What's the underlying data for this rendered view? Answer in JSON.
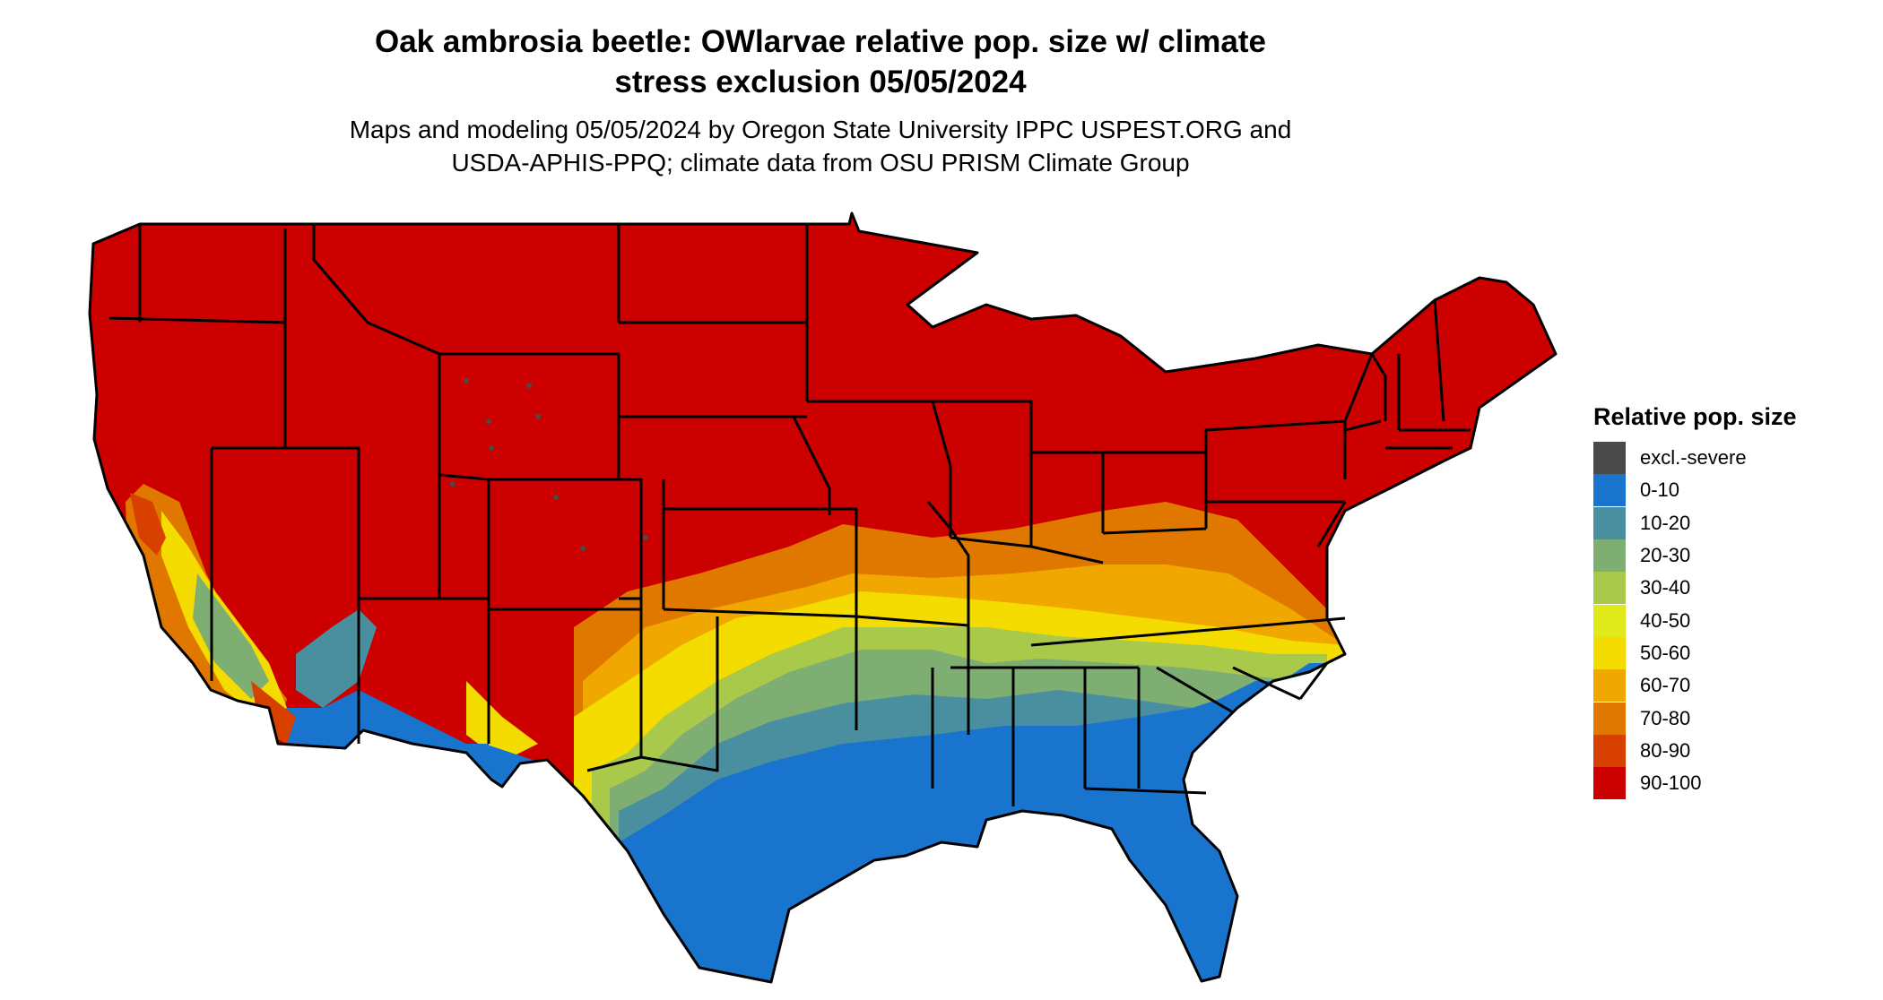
{
  "title": {
    "line1": "Oak ambrosia beetle: OWlarvae relative pop. size w/ climate",
    "line2": "stress exclusion 05/05/2024"
  },
  "subtitle": {
    "line1": "Maps and modeling 05/05/2024 by Oregon State University IPPC USPEST.ORG and",
    "line2": "USDA-APHIS-PPQ; climate data from OSU PRISM Climate Group"
  },
  "legend": {
    "title": "Relative pop. size",
    "items": [
      {
        "label": "excl.-severe",
        "color": "#4a4a4a"
      },
      {
        "label": "0-10",
        "color": "#1874cd"
      },
      {
        "label": "10-20",
        "color": "#4a8fa0"
      },
      {
        "label": "20-30",
        "color": "#7fae72"
      },
      {
        "label": "30-40",
        "color": "#a9c94a"
      },
      {
        "label": "40-50",
        "color": "#e0ea1a"
      },
      {
        "label": "50-60",
        "color": "#f5dc00"
      },
      {
        "label": "60-70",
        "color": "#f0a800"
      },
      {
        "label": "70-80",
        "color": "#e07800"
      },
      {
        "label": "80-90",
        "color": "#d84000"
      },
      {
        "label": "90-100",
        "color": "#cd0000"
      }
    ]
  },
  "map": {
    "region": "conterminous-us",
    "boundaries": "state-lines",
    "dominant_class": "90-100",
    "southern_classes": [
      "0-10",
      "10-20",
      "20-30",
      "30-40",
      "40-50",
      "50-60",
      "60-70",
      "70-80",
      "80-90"
    ]
  }
}
